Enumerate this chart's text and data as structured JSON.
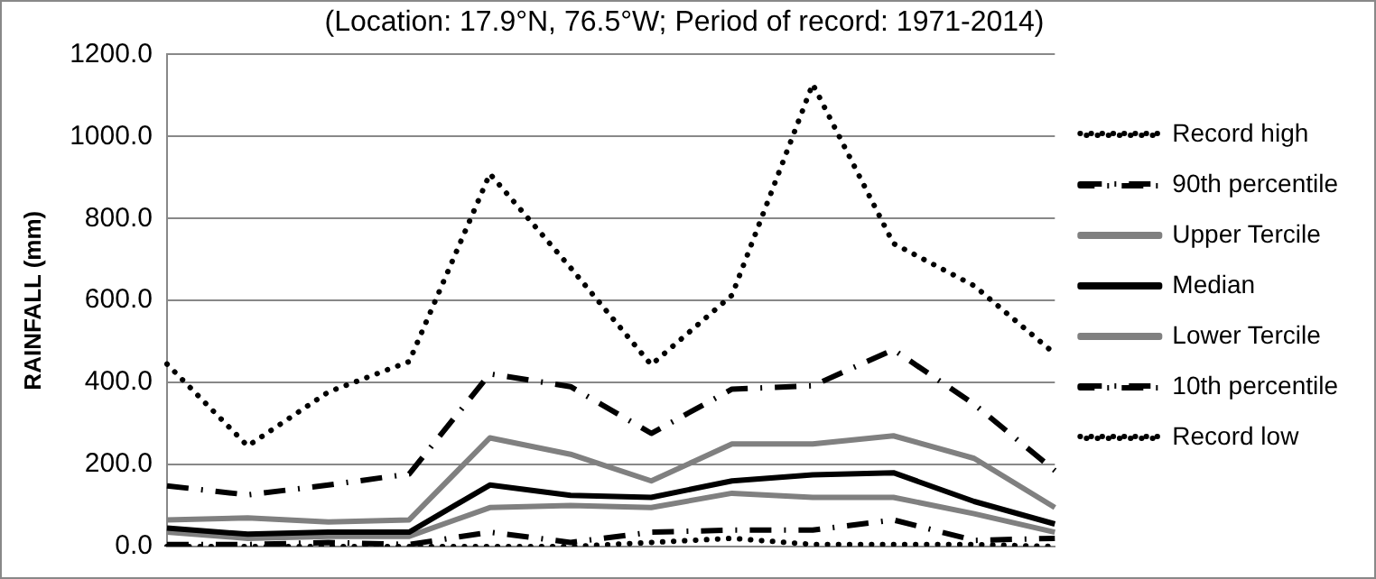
{
  "chart_data": {
    "type": "line",
    "title": "(Location: 17.9°N, 76.5°W; Period of record: 1971-2014)",
    "ylabel": "RAINFALL (mm)",
    "categories": [
      null,
      null,
      null,
      null,
      null,
      null,
      null,
      null,
      null,
      null,
      null,
      null
    ],
    "series": [
      {
        "name": "Record high",
        "color": "#000000",
        "line_style": "dotted",
        "values": [
          445,
          245,
          377,
          451,
          909,
          680,
          443,
          613,
          1128,
          739,
          636,
          470
        ]
      },
      {
        "name": "90th percentile",
        "color": "#000000",
        "line_style": "dashed",
        "values": [
          148,
          126,
          150,
          177,
          421,
          390,
          276,
          384,
          392,
          480,
          347,
          185
        ]
      },
      {
        "name": "Upper Tercile",
        "color": "#808080",
        "line_style": "solid",
        "values": [
          65,
          70,
          60,
          65,
          265,
          225,
          160,
          250,
          250,
          270,
          215,
          95
        ]
      },
      {
        "name": "Median",
        "color": "#000000",
        "line_style": "solid",
        "values": [
          45,
          30,
          35,
          35,
          150,
          125,
          120,
          160,
          175,
          180,
          110,
          55
        ]
      },
      {
        "name": "Lower Tercile",
        "color": "#808080",
        "line_style": "solid",
        "values": [
          35,
          20,
          25,
          25,
          95,
          100,
          95,
          130,
          120,
          120,
          80,
          35
        ]
      },
      {
        "name": "10th percentile",
        "color": "#000000",
        "line_style": "dashed",
        "values": [
          5,
          5,
          10,
          5,
          35,
          10,
          35,
          40,
          40,
          65,
          15,
          20
        ]
      },
      {
        "name": "Record low",
        "color": "#000000",
        "line_style": "dotted",
        "values": [
          0,
          0,
          0,
          0,
          0,
          0,
          10,
          20,
          5,
          5,
          5,
          0
        ]
      }
    ],
    "ylim": [
      0,
      1200
    ],
    "yticks": [
      {
        "value": 0,
        "label": "0.0"
      },
      {
        "value": 200,
        "label": "200.0"
      },
      {
        "value": 400,
        "label": "400.0"
      },
      {
        "value": 600,
        "label": "600.0"
      },
      {
        "value": 800,
        "label": "800.0"
      },
      {
        "value": 1000,
        "label": "1000.0"
      },
      {
        "value": 1200,
        "label": "1200.0"
      }
    ],
    "grid": "y",
    "legend": "right",
    "tick_labels": "y",
    "marker": "none"
  }
}
